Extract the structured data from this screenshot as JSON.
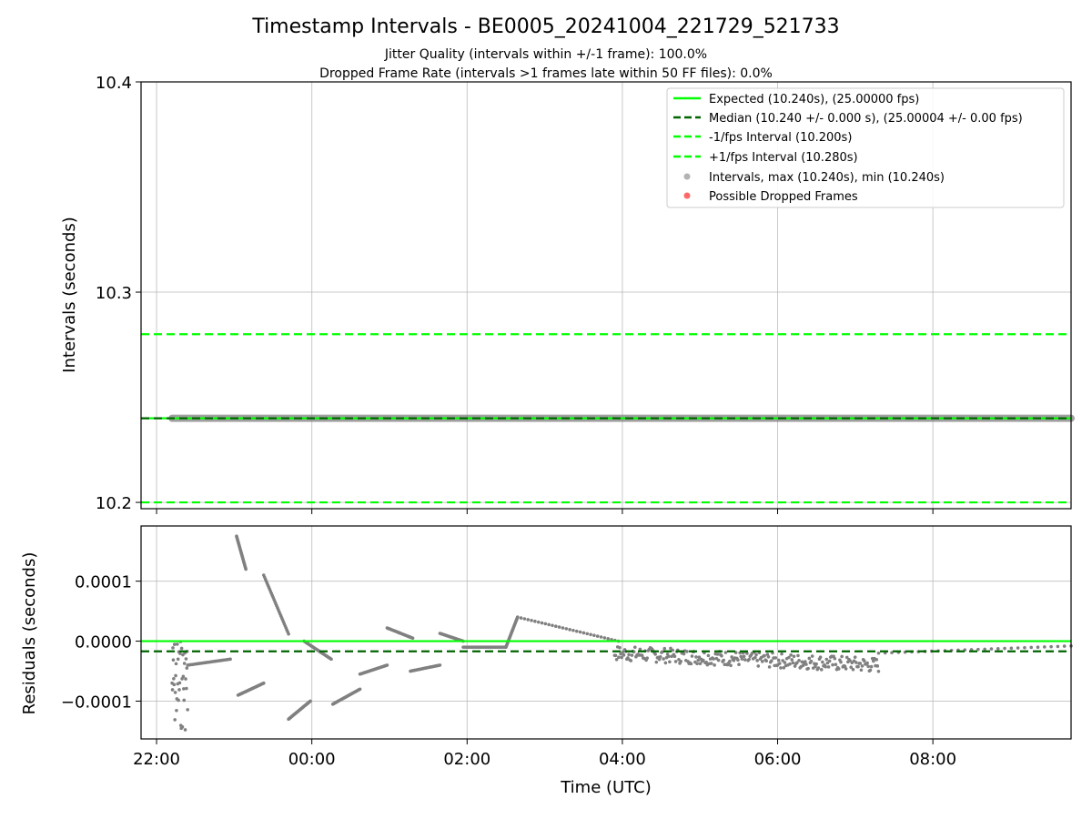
{
  "header": {
    "title": "Timestamp Intervals - BE0005_20241004_221729_521733",
    "subtitle1": "Jitter Quality (intervals within +/-1 frame): 100.0%",
    "subtitle2": "Dropped Frame Rate (intervals >1 frames late within 50 FF files): 0.0%"
  },
  "colors": {
    "expected": "#00ff00",
    "median": "#006400",
    "points": "#808080",
    "dropped": "#ff4d4d",
    "grid": "#b0b0b0"
  },
  "chart_data": [
    {
      "type": "scatter",
      "ylabel": "Intervals (seconds)",
      "xlabel": "",
      "ylim": [
        10.197,
        10.4
      ],
      "xlim_hours": [
        -2.2,
        9.78
      ],
      "yticks": [
        10.2,
        10.3,
        10.4
      ],
      "ytick_labels": [
        "10.2",
        "10.3",
        "10.4"
      ],
      "grid": true,
      "hlines": [
        {
          "label": "Expected (10.240s), (25.00000 fps)",
          "y": 10.24,
          "style": "solid",
          "color": "#00ff00"
        },
        {
          "label": "Median (10.240 +/- 0.000 s), (25.00004 +/- 0.00 fps)",
          "y": 10.24,
          "style": "dashed",
          "color": "#006400"
        },
        {
          "label": "-1/fps Interval (10.200s)",
          "y": 10.2,
          "style": "dashed",
          "color": "#00ff00"
        },
        {
          "label": "+1/fps Interval (10.280s)",
          "y": 10.28,
          "style": "dashed",
          "color": "#00ff00"
        }
      ],
      "series": [
        {
          "name": "Intervals, max (10.240s), min (10.240s)",
          "x_range_hours": [
            -1.8,
            9.78
          ],
          "y": 10.24,
          "color": "#808080"
        },
        {
          "name": "Possible Dropped Frames",
          "values": [],
          "color": "#ff4d4d"
        }
      ],
      "legend_position": "upper right"
    },
    {
      "type": "scatter",
      "ylabel": "Residuals (seconds)",
      "xlabel": "Time (UTC)",
      "ylim": [
        -0.000163,
        0.000192
      ],
      "xlim_hours": [
        -2.2,
        9.78
      ],
      "yticks": [
        0.0001,
        0.0,
        -0.0001
      ],
      "ytick_labels": [
        "0.0001",
        "0.0000",
        "−0.0001"
      ],
      "xticks_hours": [
        -2,
        0,
        2,
        4,
        6,
        8
      ],
      "xtick_labels": [
        "22:00",
        "00:00",
        "02:00",
        "04:00",
        "06:00",
        "08:00"
      ],
      "grid": true,
      "hlines": [
        {
          "label": "Expected",
          "y": 0.0,
          "style": "solid",
          "color": "#00ff00"
        },
        {
          "label": "Median",
          "y": -1.7e-05,
          "style": "dashed",
          "color": "#006400"
        }
      ],
      "segments": [
        {
          "x": [
            -1.8,
            -1.6
          ],
          "y": [
            7e-06,
            -0.00015
          ],
          "kind": "scatter"
        },
        {
          "x": [
            -1.6,
            -1.05
          ],
          "y": [
            -4e-05,
            -3e-05
          ],
          "kind": "line"
        },
        {
          "x": [
            -0.97,
            -0.85
          ],
          "y": [
            0.000175,
            0.00012
          ],
          "kind": "line"
        },
        {
          "x": [
            -0.95,
            -0.62
          ],
          "y": [
            -9e-05,
            -7e-05
          ],
          "kind": "line"
        },
        {
          "x": [
            -0.62,
            -0.3
          ],
          "y": [
            0.00011,
            1.2e-05
          ],
          "kind": "line"
        },
        {
          "x": [
            -0.3,
            -0.02
          ],
          "y": [
            -0.00013,
            -0.0001
          ],
          "kind": "line"
        },
        {
          "x": [
            -0.1,
            0.25
          ],
          "y": [
            0.0,
            -3e-05
          ],
          "kind": "line"
        },
        {
          "x": [
            0.27,
            0.62
          ],
          "y": [
            -0.000105,
            -8e-05
          ],
          "kind": "line"
        },
        {
          "x": [
            0.62,
            0.97
          ],
          "y": [
            -5.5e-05,
            -4e-05
          ],
          "kind": "line"
        },
        {
          "x": [
            0.97,
            1.3
          ],
          "y": [
            2.2e-05,
            5e-06
          ],
          "kind": "line"
        },
        {
          "x": [
            1.27,
            1.65
          ],
          "y": [
            -5e-05,
            -4e-05
          ],
          "kind": "line"
        },
        {
          "x": [
            1.65,
            1.95
          ],
          "y": [
            1.3e-05,
            0.0
          ],
          "kind": "line"
        },
        {
          "x": [
            1.95,
            2.5
          ],
          "y": [
            -1e-05,
            -1e-05
          ],
          "kind": "line"
        },
        {
          "x": [
            2.5,
            2.65
          ],
          "y": [
            -1e-05,
            4e-05
          ],
          "kind": "line"
        },
        {
          "x": [
            2.65,
            3.95
          ],
          "y": [
            4e-05,
            0.0
          ],
          "kind": "line"
        },
        {
          "x": [
            3.9,
            7.3
          ],
          "y": [
            -2e-05,
            -4e-05
          ],
          "kind": "band"
        },
        {
          "x": [
            7.3,
            9.78
          ],
          "y": [
            -2e-05,
            -8e-06
          ],
          "kind": "line"
        }
      ]
    }
  ]
}
